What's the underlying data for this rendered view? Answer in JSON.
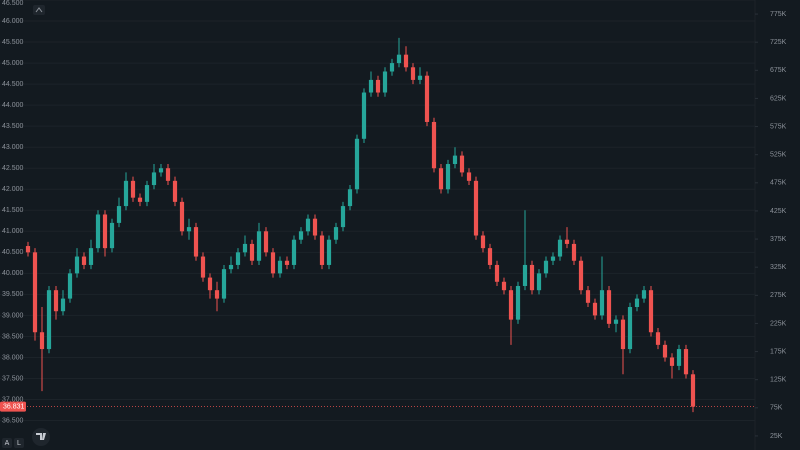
{
  "chart_data": {
    "type": "candlestick",
    "candles": [
      [
        40650,
        40750,
        40400,
        40500
      ],
      [
        40500,
        40600,
        38400,
        38600
      ],
      [
        38600,
        39200,
        37200,
        38200
      ],
      [
        38200,
        39700,
        38100,
        39600
      ],
      [
        39600,
        39700,
        38900,
        39100
      ],
      [
        39100,
        39600,
        39000,
        39400
      ],
      [
        39400,
        40100,
        39300,
        40000
      ],
      [
        40000,
        40600,
        39900,
        40400
      ],
      [
        40400,
        40500,
        40100,
        40200
      ],
      [
        40200,
        40800,
        40100,
        40600
      ],
      [
        40600,
        41500,
        40500,
        41400
      ],
      [
        41400,
        41500,
        40400,
        40600
      ],
      [
        40600,
        41300,
        40500,
        41200
      ],
      [
        41200,
        41800,
        41100,
        41600
      ],
      [
        41600,
        42400,
        41500,
        42200
      ],
      [
        42200,
        42300,
        41700,
        41800
      ],
      [
        41800,
        41900,
        41600,
        41700
      ],
      [
        41700,
        42200,
        41600,
        42100
      ],
      [
        42100,
        42600,
        42000,
        42400
      ],
      [
        42400,
        42600,
        42300,
        42500
      ],
      [
        42500,
        42600,
        42100,
        42200
      ],
      [
        42200,
        42300,
        41600,
        41700
      ],
      [
        41700,
        41800,
        40900,
        41000
      ],
      [
        41000,
        41300,
        40800,
        41100
      ],
      [
        41100,
        41200,
        40300,
        40400
      ],
      [
        40400,
        40500,
        39800,
        39900
      ],
      [
        39900,
        40000,
        39400,
        39600
      ],
      [
        39600,
        39800,
        39100,
        39400
      ],
      [
        39400,
        40200,
        39300,
        40100
      ],
      [
        40100,
        40400,
        40000,
        40200
      ],
      [
        40200,
        40600,
        40100,
        40500
      ],
      [
        40500,
        40900,
        40400,
        40700
      ],
      [
        40700,
        40800,
        40200,
        40300
      ],
      [
        40300,
        41200,
        40200,
        41000
      ],
      [
        41000,
        41100,
        40400,
        40500
      ],
      [
        40500,
        40600,
        39900,
        40000
      ],
      [
        40000,
        40400,
        39900,
        40300
      ],
      [
        40300,
        40400,
        40100,
        40200
      ],
      [
        40200,
        40900,
        40100,
        40800
      ],
      [
        40800,
        41100,
        40700,
        41000
      ],
      [
        41000,
        41400,
        40900,
        41300
      ],
      [
        41300,
        41400,
        40800,
        40900
      ],
      [
        40900,
        41000,
        40100,
        40200
      ],
      [
        40200,
        40900,
        40100,
        40800
      ],
      [
        40800,
        41200,
        40700,
        41100
      ],
      [
        41100,
        41700,
        41000,
        41600
      ],
      [
        41600,
        42100,
        41500,
        42000
      ],
      [
        42000,
        43300,
        41900,
        43200
      ],
      [
        43200,
        44400,
        43100,
        44300
      ],
      [
        44300,
        44800,
        44200,
        44600
      ],
      [
        44600,
        44700,
        44200,
        44300
      ],
      [
        44300,
        44900,
        44200,
        44800
      ],
      [
        44800,
        45100,
        44700,
        45000
      ],
      [
        45000,
        45600,
        44900,
        45200
      ],
      [
        45200,
        45400,
        44800,
        44900
      ],
      [
        44900,
        45000,
        44500,
        44600
      ],
      [
        44600,
        44900,
        44500,
        44700
      ],
      [
        44700,
        44800,
        43500,
        43600
      ],
      [
        43600,
        43700,
        42400,
        42500
      ],
      [
        42500,
        42600,
        41900,
        42000
      ],
      [
        42000,
        42700,
        41900,
        42600
      ],
      [
        42600,
        43000,
        42500,
        42800
      ],
      [
        42800,
        42900,
        42300,
        42400
      ],
      [
        42400,
        42500,
        42100,
        42200
      ],
      [
        42200,
        42300,
        40800,
        40900
      ],
      [
        40900,
        41000,
        40500,
        40600
      ],
      [
        40600,
        40700,
        40100,
        40200
      ],
      [
        40200,
        40300,
        39700,
        39800
      ],
      [
        39800,
        39900,
        39500,
        39600
      ],
      [
        39600,
        39700,
        38300,
        38900
      ],
      [
        38900,
        39800,
        38800,
        39700
      ],
      [
        39700,
        41500,
        39600,
        40200
      ],
      [
        40200,
        40300,
        39500,
        39600
      ],
      [
        39600,
        40100,
        39500,
        40000
      ],
      [
        40000,
        40400,
        39900,
        40300
      ],
      [
        40300,
        40500,
        40200,
        40400
      ],
      [
        40400,
        40900,
        40300,
        40800
      ],
      [
        40800,
        41100,
        40600,
        40700
      ],
      [
        40700,
        40800,
        40200,
        40300
      ],
      [
        40300,
        40400,
        39500,
        39600
      ],
      [
        39600,
        39700,
        39200,
        39300
      ],
      [
        39300,
        39400,
        38900,
        39000
      ],
      [
        39000,
        40400,
        38900,
        39600
      ],
      [
        39600,
        39700,
        38700,
        38800
      ],
      [
        38800,
        39000,
        38600,
        38900
      ],
      [
        38900,
        39000,
        37600,
        38200
      ],
      [
        38200,
        39300,
        38100,
        39200
      ],
      [
        39200,
        39500,
        39100,
        39400
      ],
      [
        39400,
        39700,
        39300,
        39600
      ],
      [
        39600,
        39700,
        38500,
        38600
      ],
      [
        38600,
        38700,
        38200,
        38300
      ],
      [
        38300,
        38400,
        37900,
        38000
      ],
      [
        38000,
        38100,
        37500,
        37800
      ],
      [
        37800,
        38300,
        37700,
        38200
      ],
      [
        38200,
        38300,
        37500,
        37600
      ],
      [
        37600,
        37700,
        36700,
        36831
      ]
    ],
    "up_color": "#26a69a",
    "down_color": "#ef5350",
    "ylim": [
      35800,
      46500
    ],
    "yticks": [
      {
        "value": 36500,
        "label": "36.500"
      },
      {
        "value": 37000,
        "label": "37.000"
      },
      {
        "value": 37500,
        "label": "37.500"
      },
      {
        "value": 38000,
        "label": "38.000"
      },
      {
        "value": 38500,
        "label": "38.500"
      },
      {
        "value": 39000,
        "label": "39.000"
      },
      {
        "value": 39500,
        "label": "39.500"
      },
      {
        "value": 40000,
        "label": "40.000"
      },
      {
        "value": 40500,
        "label": "40.500"
      },
      {
        "value": 41000,
        "label": "41.000"
      },
      {
        "value": 41500,
        "label": "41.500"
      },
      {
        "value": 42000,
        "label": "42.000"
      },
      {
        "value": 42500,
        "label": "42.500"
      },
      {
        "value": 43000,
        "label": "43.000"
      },
      {
        "value": 43500,
        "label": "43.500"
      },
      {
        "value": 44000,
        "label": "44.000"
      },
      {
        "value": 44500,
        "label": "44.500"
      },
      {
        "value": 45000,
        "label": "45.000"
      },
      {
        "value": 45500,
        "label": "45.500"
      },
      {
        "value": 46000,
        "label": "46.000"
      },
      {
        "value": 46500,
        "label": "46.500"
      }
    ],
    "y2lim": [
      0,
      800000
    ],
    "y2ticks": [
      {
        "value": 25000,
        "label": "25K"
      },
      {
        "value": 75000,
        "label": "75K"
      },
      {
        "value": 125000,
        "label": "125K"
      },
      {
        "value": 175000,
        "label": "175K"
      },
      {
        "value": 225000,
        "label": "225K"
      },
      {
        "value": 275000,
        "label": "275K"
      },
      {
        "value": 325000,
        "label": "325K"
      },
      {
        "value": 375000,
        "label": "375K"
      },
      {
        "value": 425000,
        "label": "425K"
      },
      {
        "value": 475000,
        "label": "475K"
      },
      {
        "value": 525000,
        "label": "525K"
      },
      {
        "value": 575000,
        "label": "575K"
      },
      {
        "value": 625000,
        "label": "625K"
      },
      {
        "value": 675000,
        "label": "675K"
      },
      {
        "value": 725000,
        "label": "725K"
      },
      {
        "value": 775000,
        "label": "775K"
      }
    ],
    "last_price": {
      "value": 36831,
      "label": "36.831"
    },
    "grid": true,
    "controls": [
      "A",
      "L"
    ]
  }
}
